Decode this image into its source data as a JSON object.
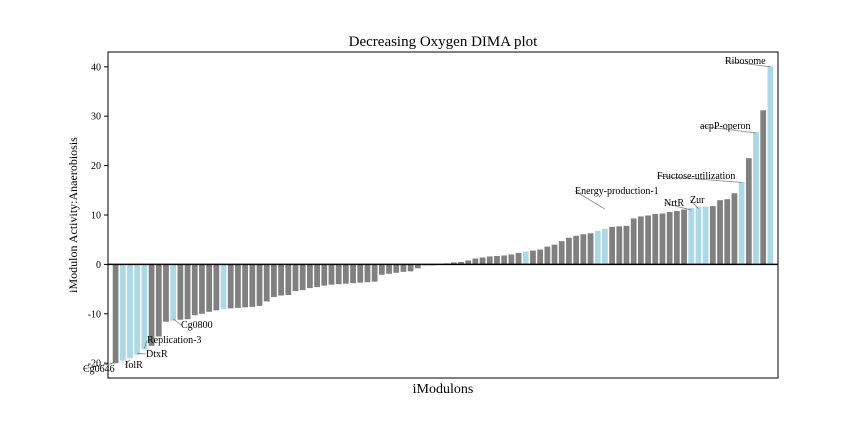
{
  "chart_data": {
    "type": "bar",
    "title": "Decreasing Oxygen DIMA plot",
    "xlabel": "iModulons",
    "ylabel": "iModulon Activity:Anaerobiosis",
    "ylim": [
      -23,
      43
    ],
    "yticks": [
      -20,
      -10,
      0,
      10,
      20,
      30,
      40
    ],
    "grid": false,
    "legend": "none",
    "colors": {
      "highlighted": "#add8e6",
      "default": "#808080",
      "zero_line": "#000000"
    },
    "values": [
      -20.0,
      -19.5,
      -19.0,
      -18.3,
      -17.2,
      -16.5,
      -14.6,
      -11.6,
      -11.4,
      -11.2,
      -11.1,
      -10.3,
      -10.0,
      -9.6,
      -9.3,
      -9.0,
      -8.9,
      -8.8,
      -8.7,
      -8.6,
      -8.4,
      -7.5,
      -6.6,
      -6.3,
      -6.2,
      -5.4,
      -5.2,
      -4.8,
      -4.6,
      -4.3,
      -4.1,
      -4.0,
      -3.9,
      -3.8,
      -3.7,
      -3.6,
      -3.5,
      -2.1,
      -1.9,
      -1.7,
      -1.5,
      -1.4,
      -0.8,
      -0.2,
      -0.2,
      -0.1,
      0.2,
      0.4,
      0.5,
      0.8,
      1.2,
      1.4,
      1.6,
      1.7,
      1.8,
      2.0,
      2.3,
      2.6,
      2.8,
      3.0,
      3.6,
      4.0,
      4.7,
      5.4,
      5.8,
      6.1,
      6.3,
      6.8,
      7.2,
      7.6,
      7.7,
      7.8,
      9.3,
      9.7,
      9.9,
      10.2,
      10.3,
      10.6,
      10.8,
      11.1,
      11.4,
      11.6,
      11.7,
      11.8,
      13.0,
      13.2,
      14.4,
      16.7,
      21.5,
      26.8,
      31.2,
      40.1
    ],
    "highlighted_indices": [
      1,
      2,
      3,
      4,
      8,
      15,
      57,
      67,
      68,
      80,
      81,
      82,
      87,
      89,
      91
    ],
    "annotations": [
      {
        "text": "Cg0646",
        "index": 0
      },
      {
        "text": "IolR",
        "index": 2
      },
      {
        "text": "DtxR",
        "index": 3
      },
      {
        "text": "Replication-3",
        "index": 4
      },
      {
        "text": "Cg0800",
        "index": 8
      },
      {
        "text": "Energy-production-1",
        "index": 68
      },
      {
        "text": "NrtR",
        "index": 80
      },
      {
        "text": "Zur",
        "index": 81
      },
      {
        "text": "Fructose-utilization",
        "index": 87
      },
      {
        "text": "acpP-operon",
        "index": 89
      },
      {
        "text": "Ribosome",
        "index": 91
      }
    ]
  }
}
